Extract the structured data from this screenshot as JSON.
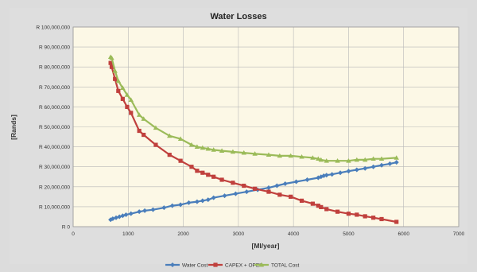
{
  "chart_data": {
    "type": "line",
    "title": "Water Losses",
    "xlabel": "[Ml/year]",
    "ylabel": "[Rands]",
    "xlim": [
      0,
      7000
    ],
    "ylim": [
      0,
      100000000
    ],
    "x_ticks": [
      0,
      1000,
      2000,
      3000,
      4000,
      5000,
      6000,
      7000
    ],
    "x_tick_labels": [
      "0",
      "1000",
      "2000",
      "3000",
      "4000",
      "5000",
      "6000",
      "7000"
    ],
    "y_ticks": [
      0,
      10000000,
      20000000,
      30000000,
      40000000,
      50000000,
      60000000,
      70000000,
      80000000,
      90000000,
      100000000
    ],
    "y_tick_labels": [
      "R 0",
      "R 10,000,000",
      "R 20,000,000",
      "R 30,000,000",
      "R 40,000,000",
      "R 50,000,000",
      "R 60,000,000",
      "R 70,000,000",
      "R 80,000,000",
      "R 90,000,000",
      "R 100,000,000"
    ],
    "grid": "major-y-and-x",
    "legend_position": "bottom",
    "colors": {
      "water_cost": "#4a7ebb",
      "capex_opex": "#c0403d",
      "total_cost": "#9bbb59",
      "plot_bg": "#fcf8e6",
      "grid": "#b8b8b8"
    },
    "series": [
      {
        "name": "Water Cost",
        "color": "#4a7ebb",
        "marker": "diamond",
        "x": [
          680,
          720,
          780,
          840,
          900,
          960,
          1050,
          1200,
          1300,
          1450,
          1650,
          1800,
          1950,
          2100,
          2250,
          2350,
          2450,
          2550,
          2750,
          2950,
          3150,
          3350,
          3550,
          3700,
          3850,
          4050,
          4250,
          4450,
          4500,
          4550,
          4600,
          4700,
          4850,
          5000,
          5150,
          5300,
          5450,
          5600,
          5750,
          5870
        ],
        "y": [
          3500000,
          4000000,
          4500000,
          5000000,
          5500000,
          6000000,
          6500000,
          7500000,
          8000000,
          8500000,
          9500000,
          10500000,
          11000000,
          12000000,
          12500000,
          13000000,
          13500000,
          14500000,
          15500000,
          16500000,
          17500000,
          18500000,
          19500000,
          20500000,
          21500000,
          22500000,
          23500000,
          24500000,
          25000000,
          25500000,
          25800000,
          26200000,
          27000000,
          27800000,
          28500000,
          29200000,
          30000000,
          30800000,
          31500000,
          32200000
        ]
      },
      {
        "name": "CAPEX + OPEX",
        "color": "#c0403d",
        "marker": "square",
        "x": [
          680,
          700,
          760,
          820,
          900,
          980,
          1050,
          1200,
          1280,
          1500,
          1750,
          1950,
          2150,
          2250,
          2350,
          2450,
          2550,
          2700,
          2900,
          3100,
          3300,
          3550,
          3750,
          3950,
          4150,
          4350,
          4450,
          4500,
          4600,
          4800,
          5000,
          5150,
          5300,
          5450,
          5600,
          5870
        ],
        "y": [
          82000000,
          80000000,
          74000000,
          68000000,
          64000000,
          60000000,
          57000000,
          48000000,
          46000000,
          41000000,
          36000000,
          33000000,
          30000000,
          28000000,
          27000000,
          26000000,
          25000000,
          23500000,
          22000000,
          20500000,
          19000000,
          17500000,
          16000000,
          15000000,
          13000000,
          11500000,
          10500000,
          9800000,
          8800000,
          7500000,
          6500000,
          6000000,
          5200000,
          4500000,
          3800000,
          2400000
        ]
      },
      {
        "name": "TOTAL Cost",
        "color": "#9bbb59",
        "marker": "triangle",
        "x": [
          680,
          700,
          760,
          820,
          900,
          980,
          1050,
          1200,
          1280,
          1500,
          1750,
          1950,
          2150,
          2250,
          2350,
          2450,
          2550,
          2700,
          2900,
          3100,
          3300,
          3550,
          3750,
          3950,
          4150,
          4350,
          4450,
          4500,
          4600,
          4800,
          5000,
          5150,
          5300,
          5450,
          5600,
          5870
        ],
        "y": [
          85000000,
          84500000,
          78000000,
          73000000,
          69500000,
          66000000,
          63500000,
          56000000,
          54000000,
          49500000,
          45500000,
          44000000,
          41000000,
          40000000,
          39500000,
          39000000,
          38500000,
          38000000,
          37500000,
          37000000,
          36500000,
          36000000,
          35500000,
          35500000,
          35000000,
          34500000,
          34000000,
          33500000,
          33000000,
          33000000,
          33000000,
          33500000,
          33500000,
          34000000,
          34000000,
          34500000
        ]
      }
    ]
  }
}
